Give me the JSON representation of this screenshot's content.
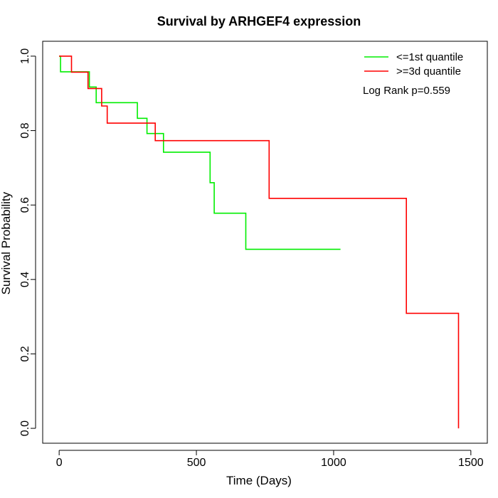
{
  "chart_data": {
    "type": "line",
    "step": true,
    "title": "Survival by ARHGEF4 expression",
    "xlabel": "Time (Days)",
    "ylabel": "Survival Probability",
    "xlim": [
      -60,
      1560
    ],
    "ylim": [
      -0.04,
      1.04
    ],
    "xticks": [
      0,
      500,
      1000,
      1500
    ],
    "yticks": [
      0.0,
      0.2,
      0.4,
      0.6,
      0.8,
      1.0
    ],
    "xtick_labels": [
      "0",
      "500",
      "1000",
      "1500"
    ],
    "ytick_labels": [
      "0.0",
      "0.2",
      "0.4",
      "0.6",
      "0.8",
      "1.0"
    ],
    "grid": false,
    "legend_position": "top-right",
    "annotation": "Log Rank p=0.559",
    "series": [
      {
        "name": "<=1st quantile",
        "color": "#00ee00",
        "points": [
          [
            0,
            1.0
          ],
          [
            5,
            0.958
          ],
          [
            110,
            0.917
          ],
          [
            135,
            0.875
          ],
          [
            285,
            0.833
          ],
          [
            320,
            0.792
          ],
          [
            380,
            0.742
          ],
          [
            550,
            0.66
          ],
          [
            565,
            0.578
          ],
          [
            680,
            0.481
          ],
          [
            1025,
            0.481
          ]
        ]
      },
      {
        "name": ">=3d quantile",
        "color": "#ff0000",
        "points": [
          [
            0,
            1.0
          ],
          [
            45,
            0.957
          ],
          [
            105,
            0.913
          ],
          [
            155,
            0.866
          ],
          [
            175,
            0.82
          ],
          [
            350,
            0.773
          ],
          [
            765,
            0.618
          ],
          [
            1265,
            0.309
          ],
          [
            1455,
            0.0
          ]
        ]
      }
    ]
  }
}
